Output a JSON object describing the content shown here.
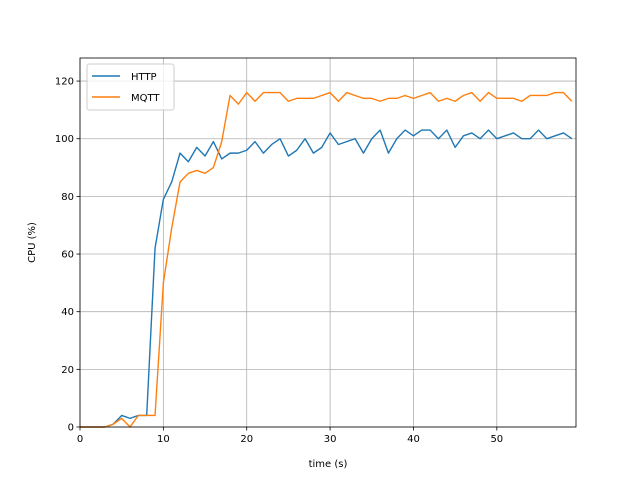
{
  "chart_data": {
    "type": "line",
    "title": "",
    "xlabel": "time (s)",
    "ylabel": "CPU (%)",
    "xlim": [
      0,
      59.5
    ],
    "ylim": [
      0,
      128
    ],
    "xticks": [
      0,
      10,
      20,
      30,
      40,
      50
    ],
    "yticks": [
      0,
      20,
      40,
      60,
      80,
      100,
      120
    ],
    "grid": "x-and-y-major",
    "legend": "top-left",
    "x": [
      0,
      1,
      2,
      3,
      4,
      5,
      6,
      7,
      8,
      9,
      10,
      11,
      12,
      13,
      14,
      15,
      16,
      17,
      18,
      19,
      20,
      21,
      22,
      23,
      24,
      25,
      26,
      27,
      28,
      29,
      30,
      31,
      32,
      33,
      34,
      35,
      36,
      37,
      38,
      39,
      40,
      41,
      42,
      43,
      44,
      45,
      46,
      47,
      48,
      49,
      50,
      51,
      52,
      53,
      54,
      55,
      56,
      57,
      58,
      59
    ],
    "series": [
      {
        "name": "HTTP",
        "color": "#1f77b4",
        "values": [
          0,
          0,
          0,
          0,
          1,
          4,
          3,
          4,
          4,
          62,
          79,
          85,
          95,
          92,
          97,
          94,
          99,
          93,
          95,
          95,
          96,
          99,
          95,
          98,
          100,
          94,
          96,
          100,
          95,
          97,
          102,
          98,
          99,
          100,
          95,
          100,
          103,
          95,
          100,
          103,
          101,
          103,
          103,
          100,
          103,
          97,
          101,
          102,
          100,
          103,
          100,
          101,
          102,
          100,
          100,
          103,
          100,
          101,
          102,
          100
        ]
      },
      {
        "name": "MQTT",
        "color": "#ff7f0e",
        "values": [
          0,
          0,
          0,
          0,
          1,
          3,
          0,
          4,
          4,
          4,
          50,
          69,
          85,
          88,
          89,
          88,
          90,
          99,
          115,
          112,
          116,
          113,
          116,
          116,
          116,
          113,
          114,
          114,
          114,
          115,
          116,
          113,
          116,
          115,
          114,
          114,
          113,
          114,
          114,
          115,
          114,
          115,
          116,
          113,
          114,
          113,
          115,
          116,
          113,
          116,
          114,
          114,
          114,
          113,
          115,
          115,
          115,
          116,
          116,
          113
        ]
      }
    ]
  }
}
